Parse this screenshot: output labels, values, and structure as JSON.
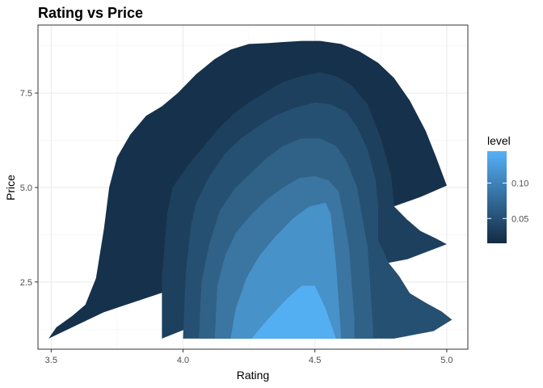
{
  "chart_data": {
    "type": "density_contour_filled",
    "title": "Rating vs Price",
    "xlabel": "Rating",
    "ylabel": "Price",
    "xlim": [
      3.45,
      5.08
    ],
    "ylim": [
      0.72,
      9.3
    ],
    "x_ticks": [
      3.5,
      4.0,
      4.5,
      5.0
    ],
    "x_tick_labels": [
      "3.5",
      "4.0",
      "4.5",
      "5.0"
    ],
    "y_ticks": [
      2.5,
      5.0,
      7.5
    ],
    "y_tick_labels": [
      "2.5",
      "5.0",
      "7.5"
    ],
    "grid": true,
    "legend": {
      "title": "level",
      "position": "right",
      "range": [
        0.015,
        0.145
      ],
      "ticks": [
        0.05,
        0.1
      ],
      "tick_labels": [
        "0.05",
        "0.10"
      ],
      "color_low": "#132b43",
      "color_high": "#56b1f7"
    },
    "levels": [
      {
        "level": 0.02,
        "color": "#16314b",
        "points": [
          [
            3.49,
            1.0
          ],
          [
            3.52,
            1.3
          ],
          [
            3.58,
            1.6
          ],
          [
            3.63,
            1.9
          ],
          [
            3.67,
            2.6
          ],
          [
            3.7,
            3.9
          ],
          [
            3.72,
            5.0
          ],
          [
            3.75,
            5.8
          ],
          [
            3.8,
            6.4
          ],
          [
            3.86,
            6.9
          ],
          [
            3.92,
            7.15
          ],
          [
            3.98,
            7.5
          ],
          [
            4.05,
            8.0
          ],
          [
            4.12,
            8.4
          ],
          [
            4.18,
            8.65
          ],
          [
            4.25,
            8.8
          ],
          [
            4.32,
            8.82
          ],
          [
            4.38,
            8.85
          ],
          [
            4.45,
            8.88
          ],
          [
            4.52,
            8.88
          ],
          [
            4.6,
            8.8
          ],
          [
            4.67,
            8.6
          ],
          [
            4.74,
            8.3
          ],
          [
            4.8,
            7.9
          ],
          [
            4.86,
            7.3
          ],
          [
            4.92,
            6.5
          ],
          [
            4.96,
            5.8
          ],
          [
            5.0,
            5.05
          ],
          [
            4.9,
            4.75
          ],
          [
            4.8,
            4.5
          ],
          [
            4.72,
            4.3
          ],
          [
            4.68,
            4.3
          ],
          [
            4.55,
            3.95
          ],
          [
            4.3,
            3.1
          ],
          [
            4.0,
            2.4
          ],
          [
            3.7,
            1.7
          ]
        ]
      },
      {
        "level": 0.04,
        "color": "#1d405f",
        "points": [
          [
            3.92,
            1.0
          ],
          [
            3.92,
            2.6
          ],
          [
            3.94,
            4.3
          ],
          [
            3.96,
            5.0
          ],
          [
            4.02,
            5.6
          ],
          [
            4.08,
            6.1
          ],
          [
            4.14,
            6.6
          ],
          [
            4.2,
            7.0
          ],
          [
            4.26,
            7.3
          ],
          [
            4.32,
            7.55
          ],
          [
            4.38,
            7.8
          ],
          [
            4.45,
            7.95
          ],
          [
            4.52,
            8.05
          ],
          [
            4.58,
            7.95
          ],
          [
            4.64,
            7.7
          ],
          [
            4.7,
            7.2
          ],
          [
            4.75,
            6.3
          ],
          [
            4.79,
            5.3
          ],
          [
            4.8,
            4.5
          ],
          [
            4.85,
            4.15
          ],
          [
            4.9,
            3.85
          ],
          [
            4.96,
            3.65
          ],
          [
            5.0,
            3.5
          ],
          [
            4.85,
            3.1
          ],
          [
            4.7,
            2.9
          ],
          [
            4.55,
            2.7
          ],
          [
            4.3,
            2.0
          ],
          [
            4.1,
            1.5
          ]
        ]
      },
      {
        "level": 0.06,
        "color": "#265071",
        "points": [
          [
            4.0,
            1.0
          ],
          [
            4.01,
            2.7
          ],
          [
            4.03,
            4.0
          ],
          [
            4.05,
            4.6
          ],
          [
            4.1,
            5.3
          ],
          [
            4.16,
            5.9
          ],
          [
            4.22,
            6.3
          ],
          [
            4.28,
            6.6
          ],
          [
            4.35,
            6.9
          ],
          [
            4.42,
            7.1
          ],
          [
            4.5,
            7.25
          ],
          [
            4.56,
            7.2
          ],
          [
            4.62,
            7.0
          ],
          [
            4.66,
            6.6
          ],
          [
            4.7,
            6.0
          ],
          [
            4.73,
            5.2
          ],
          [
            4.74,
            4.5
          ],
          [
            4.74,
            3.6
          ],
          [
            4.78,
            3.0
          ],
          [
            4.82,
            2.65
          ],
          [
            4.86,
            2.2
          ],
          [
            4.92,
            1.95
          ],
          [
            4.98,
            1.72
          ],
          [
            5.02,
            1.5
          ],
          [
            4.95,
            1.2
          ],
          [
            4.8,
            1.0
          ]
        ]
      },
      {
        "level": 0.08,
        "color": "#306287",
        "points": [
          [
            4.06,
            1.0
          ],
          [
            4.07,
            2.5
          ],
          [
            4.1,
            3.5
          ],
          [
            4.14,
            4.4
          ],
          [
            4.2,
            5.0
          ],
          [
            4.26,
            5.4
          ],
          [
            4.32,
            5.8
          ],
          [
            4.38,
            6.1
          ],
          [
            4.45,
            6.3
          ],
          [
            4.52,
            6.3
          ],
          [
            4.58,
            6.1
          ],
          [
            4.62,
            5.7
          ],
          [
            4.66,
            5.0
          ],
          [
            4.68,
            4.2
          ],
          [
            4.7,
            3.4
          ],
          [
            4.71,
            2.4
          ],
          [
            4.72,
            1.3
          ],
          [
            4.72,
            1.0
          ]
        ]
      },
      {
        "level": 0.1,
        "color": "#3b75a1",
        "points": [
          [
            4.12,
            1.0
          ],
          [
            4.13,
            2.4
          ],
          [
            4.16,
            3.2
          ],
          [
            4.2,
            3.8
          ],
          [
            4.26,
            4.3
          ],
          [
            4.32,
            4.7
          ],
          [
            4.38,
            5.0
          ],
          [
            4.44,
            5.25
          ],
          [
            4.5,
            5.3
          ],
          [
            4.55,
            5.2
          ],
          [
            4.59,
            4.9
          ],
          [
            4.61,
            4.2
          ],
          [
            4.63,
            3.4
          ],
          [
            4.64,
            2.4
          ],
          [
            4.65,
            1.5
          ],
          [
            4.65,
            1.0
          ]
        ]
      },
      {
        "level": 0.12,
        "color": "#4792c8",
        "points": [
          [
            4.18,
            1.0
          ],
          [
            4.2,
            1.8
          ],
          [
            4.24,
            2.6
          ],
          [
            4.29,
            3.2
          ],
          [
            4.35,
            3.7
          ],
          [
            4.42,
            4.2
          ],
          [
            4.48,
            4.5
          ],
          [
            4.54,
            4.6
          ],
          [
            4.56,
            4.3
          ],
          [
            4.58,
            3.0
          ],
          [
            4.59,
            2.0
          ],
          [
            4.6,
            1.0
          ]
        ]
      },
      {
        "level": 0.14,
        "color": "#54aef2",
        "points": [
          [
            4.26,
            1.0
          ],
          [
            4.32,
            1.5
          ],
          [
            4.4,
            2.1
          ],
          [
            4.45,
            2.4
          ],
          [
            4.5,
            2.4
          ],
          [
            4.54,
            1.8
          ],
          [
            4.56,
            1.4
          ],
          [
            4.58,
            1.0
          ]
        ]
      }
    ]
  }
}
